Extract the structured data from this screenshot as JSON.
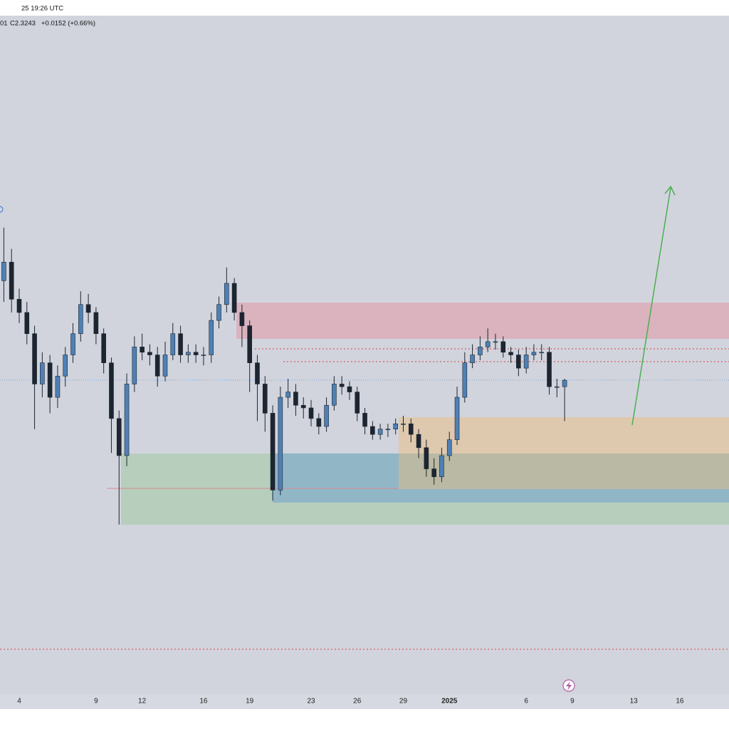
{
  "header": {
    "timestamp": "25 19:26 UTC",
    "interval": "01",
    "close_label": "C2.3243",
    "change": "+0.0152 (+0.66%)"
  },
  "chart_data": {
    "type": "candlestick",
    "up_color": "#4f80b5",
    "down_color": "#1c2530",
    "xlim": [
      2.75,
      50.2
    ],
    "ylim": [
      1.14,
      3.7
    ],
    "xticks": [
      4,
      9,
      12,
      16,
      19,
      23,
      26,
      29,
      {
        "value": 32,
        "label": "2025"
      },
      {
        "value": 37,
        "label": "6"
      },
      {
        "value": 40,
        "label": "9"
      },
      {
        "value": 44,
        "label": "13"
      },
      {
        "value": 47,
        "label": "16"
      }
    ],
    "x": [
      3,
      3.5,
      4,
      4.5,
      5,
      5.5,
      6,
      6.5,
      7,
      7.5,
      8,
      8.5,
      9,
      9.5,
      10,
      10.5,
      11,
      11.5,
      12,
      12.5,
      13,
      13.5,
      14,
      14.5,
      15,
      15.5,
      16,
      16.5,
      17,
      17.5,
      18,
      18.5,
      19,
      19.5,
      20,
      20.5,
      21,
      21.5,
      22,
      22.5,
      23,
      23.5,
      24,
      24.5,
      25,
      25.5,
      26,
      26.5,
      27,
      27.5,
      28,
      28.5,
      29,
      29.5,
      30,
      30.5,
      31,
      31.5,
      32,
      32.5,
      33,
      33.5,
      34,
      34.5,
      35,
      35.5,
      36,
      36.5,
      37,
      37.5,
      38,
      38.5,
      39,
      39.5
    ],
    "open": [
      2.7,
      2.77,
      2.63,
      2.58,
      2.5,
      2.31,
      2.39,
      2.26,
      2.34,
      2.42,
      2.5,
      2.61,
      2.58,
      2.5,
      2.39,
      2.18,
      2.04,
      2.31,
      2.45,
      2.43,
      2.42,
      2.34,
      2.42,
      2.5,
      2.42,
      2.43,
      2.42,
      2.42,
      2.55,
      2.61,
      2.69,
      2.58,
      2.53,
      2.39,
      2.31,
      2.2,
      1.91,
      2.26,
      2.28,
      2.23,
      2.22,
      2.18,
      2.15,
      2.23,
      2.31,
      2.3,
      2.28,
      2.2,
      2.15,
      2.12,
      2.14,
      2.14,
      2.16,
      2.16,
      2.12,
      2.07,
      1.99,
      1.96,
      2.04,
      2.1,
      2.26,
      2.39,
      2.42,
      2.45,
      2.47,
      2.47,
      2.43,
      2.42,
      2.37,
      2.42,
      2.43,
      2.43,
      2.3,
      2.3
    ],
    "high": [
      2.9,
      2.82,
      2.67,
      2.62,
      2.53,
      2.43,
      2.42,
      2.38,
      2.45,
      2.54,
      2.66,
      2.65,
      2.6,
      2.52,
      2.41,
      2.21,
      2.35,
      2.49,
      2.5,
      2.46,
      2.45,
      2.47,
      2.54,
      2.53,
      2.46,
      2.46,
      2.45,
      2.58,
      2.64,
      2.75,
      2.71,
      2.61,
      2.55,
      2.42,
      2.34,
      2.23,
      2.3,
      2.33,
      2.31,
      2.26,
      2.25,
      2.2,
      2.26,
      2.34,
      2.34,
      2.32,
      2.3,
      2.22,
      2.17,
      2.16,
      2.16,
      2.18,
      2.19,
      2.18,
      2.14,
      2.1,
      2.03,
      2.07,
      2.13,
      2.3,
      2.43,
      2.46,
      2.49,
      2.52,
      2.5,
      2.49,
      2.45,
      2.44,
      2.45,
      2.46,
      2.46,
      2.45,
      2.33,
      2.33
    ],
    "low": [
      2.62,
      2.58,
      2.54,
      2.46,
      2.14,
      2.26,
      2.2,
      2.22,
      2.3,
      2.39,
      2.47,
      2.54,
      2.46,
      2.35,
      2.05,
      1.78,
      2.0,
      2.28,
      2.4,
      2.38,
      2.3,
      2.32,
      2.4,
      2.39,
      2.39,
      2.39,
      2.38,
      2.39,
      2.52,
      2.58,
      2.55,
      2.45,
      2.28,
      2.17,
      2.13,
      1.87,
      1.89,
      2.22,
      2.19,
      2.18,
      2.15,
      2.12,
      2.13,
      2.21,
      2.27,
      2.25,
      2.17,
      2.12,
      2.1,
      2.1,
      2.11,
      2.12,
      2.13,
      2.09,
      2.03,
      1.96,
      1.93,
      1.94,
      2.02,
      2.08,
      2.24,
      2.37,
      2.4,
      2.43,
      2.44,
      2.41,
      2.39,
      2.34,
      2.35,
      2.4,
      2.4,
      2.27,
      2.26,
      2.17
    ],
    "close": [
      2.77,
      2.63,
      2.58,
      2.5,
      2.31,
      2.39,
      2.26,
      2.34,
      2.42,
      2.5,
      2.61,
      2.58,
      2.5,
      2.39,
      2.18,
      2.04,
      2.31,
      2.45,
      2.43,
      2.42,
      2.34,
      2.42,
      2.5,
      2.42,
      2.43,
      2.42,
      2.42,
      2.55,
      2.61,
      2.69,
      2.58,
      2.53,
      2.39,
      2.31,
      2.2,
      1.91,
      2.26,
      2.28,
      2.23,
      2.22,
      2.18,
      2.15,
      2.23,
      2.31,
      2.3,
      2.28,
      2.2,
      2.15,
      2.12,
      2.14,
      2.14,
      2.16,
      2.16,
      2.12,
      2.07,
      1.99,
      1.96,
      2.04,
      2.1,
      2.26,
      2.39,
      2.42,
      2.45,
      2.47,
      2.47,
      2.43,
      2.42,
      2.37,
      2.42,
      2.43,
      2.43,
      2.3,
      2.3,
      2.3243
    ]
  }
}
